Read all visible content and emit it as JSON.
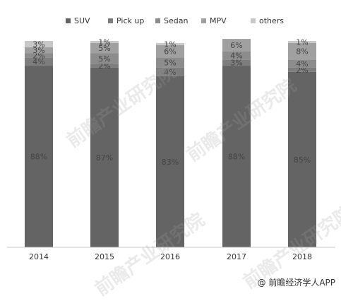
{
  "chart_data": {
    "type": "bar",
    "stacked": true,
    "categories": [
      "2014",
      "2015",
      "2016",
      "2017",
      "2018"
    ],
    "series": [
      {
        "name": "SUV",
        "color": "#646464",
        "values": [
          88,
          87,
          83,
          88,
          85
        ]
      },
      {
        "name": "Pick up",
        "color": "#7d7d7d",
        "values": [
          4,
          2,
          4,
          3,
          2
        ]
      },
      {
        "name": "Sedan",
        "color": "#8c8c8c",
        "values": [
          2,
          5,
          5,
          4,
          4
        ]
      },
      {
        "name": "MPV",
        "color": "#a0a0a0",
        "values": [
          3,
          5,
          6,
          6,
          8
        ]
      },
      {
        "name": "others",
        "color": "#c8c8c8",
        "values": [
          3,
          1,
          1,
          null,
          1
        ]
      }
    ],
    "legend_position": "top",
    "grid": false,
    "ylim": [
      0,
      100
    ],
    "label_color": "#444444"
  },
  "watermark": {
    "text": "前瞻产业研究院"
  },
  "credit": {
    "text": "@ 前瞻经济学人APP"
  }
}
